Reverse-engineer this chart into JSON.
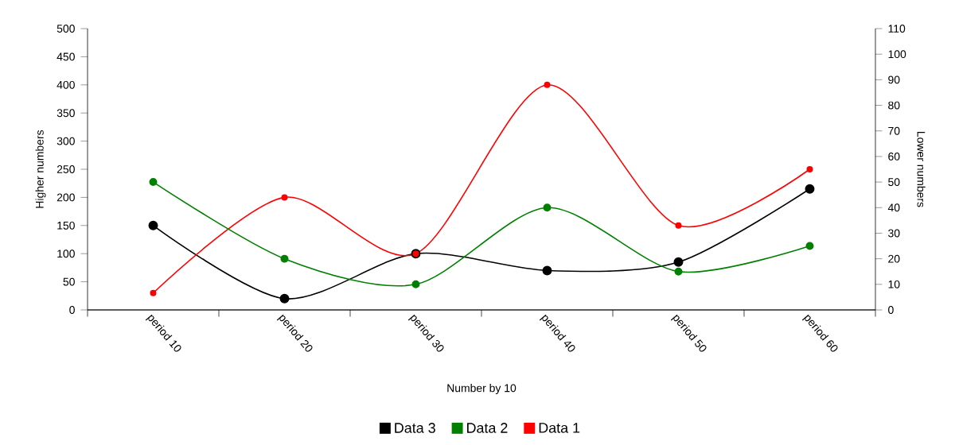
{
  "chart_data": {
    "type": "line",
    "xlabel": "Number by 10",
    "ylabel": "Higher numbers",
    "y2label": "Lower numbers",
    "categories": [
      "period 10",
      "period 20",
      "period 30",
      "period 40",
      "period 50",
      "period 60"
    ],
    "series": [
      {
        "name": "Data 3",
        "color": "#000000",
        "values": [
          150,
          20,
          100,
          70,
          85,
          215
        ]
      },
      {
        "name": "Data 2",
        "color": "#008000",
        "axis": "y2",
        "values": [
          50,
          20,
          10,
          40,
          15,
          25
        ]
      },
      {
        "name": "Data 1",
        "color": "#ff0000",
        "values": [
          30,
          200,
          100,
          400,
          150,
          250
        ]
      }
    ],
    "ylim": [
      0,
      500
    ],
    "yticks": [
      0,
      50,
      100,
      150,
      200,
      250,
      300,
      350,
      400,
      450,
      500
    ],
    "y2lim": [
      0,
      110
    ],
    "y2ticks": [
      0,
      10,
      20,
      30,
      40,
      50,
      60,
      70,
      80,
      90,
      100,
      110
    ],
    "marker": "circle",
    "legend": "bottom",
    "grid": false
  }
}
